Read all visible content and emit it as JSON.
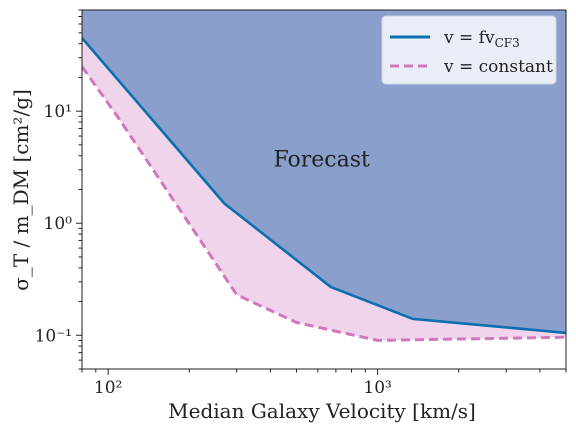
{
  "chart_data": {
    "type": "area",
    "title": "",
    "xlabel": "Median Galaxy Velocity [km/s]",
    "ylabel": "σ_T / m_DM [cm²/g]",
    "xscale": "log",
    "yscale": "log",
    "xlim": [
      80,
      5000
    ],
    "ylim": [
      0.05,
      80
    ],
    "grid": false,
    "legend_position": "top-right",
    "colors": {
      "solid_line": "#0a6fb0",
      "dashed_line": "#d277bd",
      "region_above_solid": "#8a9fcc",
      "region_between": "#f0d4ec",
      "legend_bg": "#e9edf6"
    },
    "x_ticks": [
      {
        "value": 100,
        "label": "10²"
      },
      {
        "value": 1000,
        "label": "10³"
      }
    ],
    "y_ticks": [
      {
        "value": 0.1,
        "label": "10⁻¹"
      },
      {
        "value": 1,
        "label": "10⁰"
      },
      {
        "value": 10,
        "label": "10¹"
      }
    ],
    "series": [
      {
        "name": "v = f v_CF3",
        "legend_label": "v = fv",
        "legend_sub": "CF3",
        "style": "solid",
        "x": [
          80,
          270,
          670,
          1350,
          5000
        ],
        "y": [
          45,
          1.5,
          0.27,
          0.14,
          0.105
        ]
      },
      {
        "name": "v = constant",
        "legend_label": "v = constant",
        "style": "dashed",
        "x": [
          80,
          110,
          300,
          500,
          1000,
          5000
        ],
        "y": [
          25,
          8.5,
          0.23,
          0.13,
          0.09,
          0.096
        ]
      }
    ],
    "annotations": [
      {
        "text": "Forecast",
        "x": 620,
        "y": 3.2
      }
    ]
  }
}
